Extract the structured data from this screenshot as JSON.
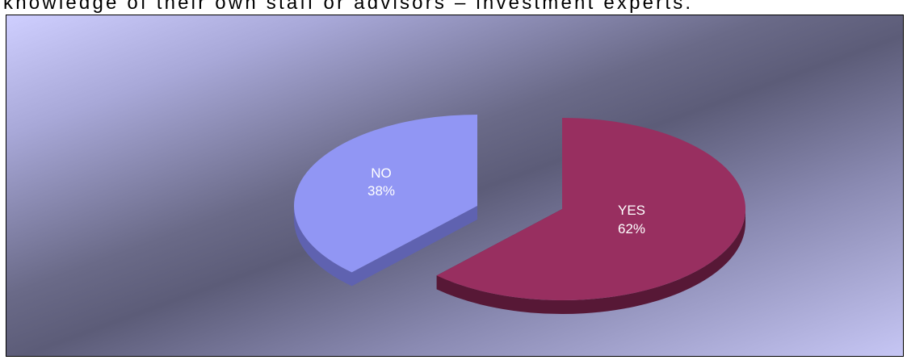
{
  "caption": "knowledge of their own staff or advisors – investment experts.",
  "chart_data": {
    "type": "pie",
    "title": "",
    "slices": [
      {
        "category": "NO",
        "percent_label": "38%",
        "value": 38,
        "color": "#9196f4",
        "side_color": "#5f62b0"
      },
      {
        "category": "YES",
        "percent_label": "62%",
        "value": 62,
        "color": "#982f60",
        "side_color": "#571836"
      }
    ],
    "exploded": true,
    "three_d": true,
    "legend": "none"
  }
}
